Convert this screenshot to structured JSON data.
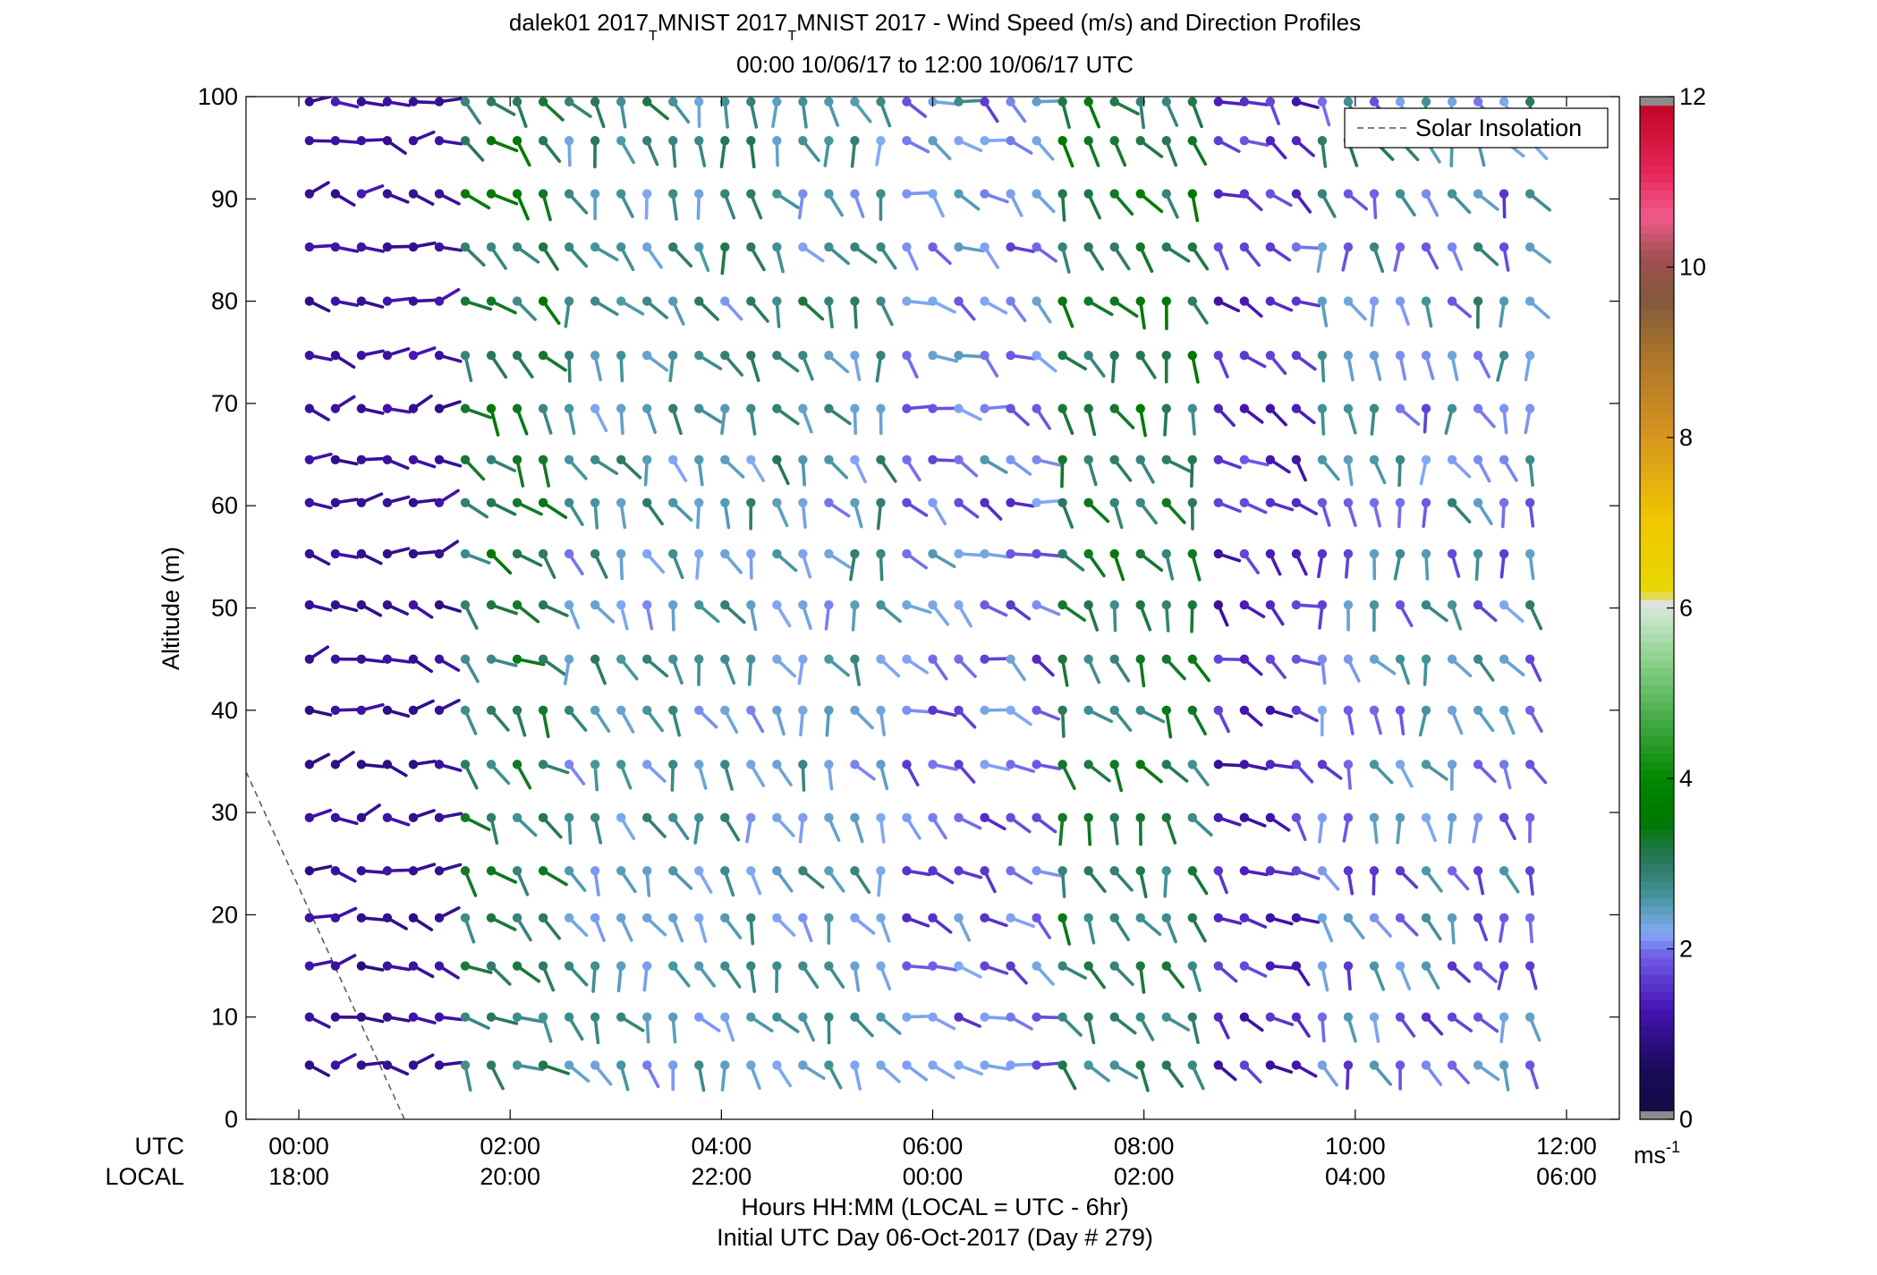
{
  "chart_data": {
    "type": "wind-barb-profile",
    "title_parts": [
      "dalek01 2017",
      "T",
      "MNIST 2017",
      "T",
      "MNIST 2017 - Wind Speed (m/s) and Direction Profiles"
    ],
    "subtitle": "00:00 10/06/17 to 12:00 10/06/17  UTC",
    "ylabel": "Altitude (m)",
    "ylim": [
      0,
      100
    ],
    "yticks": [
      "0",
      "10",
      "20",
      "30",
      "40",
      "50",
      "60",
      "70",
      "80",
      "90",
      "100"
    ],
    "xlim_hours": [
      -0.5,
      12.5
    ],
    "xticks_utc": [
      "00:00",
      "02:00",
      "04:00",
      "06:00",
      "08:00",
      "10:00",
      "12:00"
    ],
    "xticks_local": [
      "18:00",
      "20:00",
      "22:00",
      "00:00",
      "02:00",
      "04:00",
      "06:00"
    ],
    "x_row_labels": [
      "UTC",
      "LOCAL"
    ],
    "xlabel_line1": "Hours HH:MM  (LOCAL = UTC - 6hr)",
    "xlabel_line2": "Initial UTC Day 06-Oct-2017 (Day # 279)",
    "legend": {
      "label": "Solar Insolation",
      "location": "top-right",
      "style": "dashed"
    },
    "colorbar": {
      "min": 0,
      "max": 12,
      "ticks": [
        "0",
        "2",
        "4",
        "6",
        "8",
        "10",
        "12"
      ],
      "unit_base": "ms",
      "unit_exp": "-1"
    },
    "altitudes_m": [
      5.3,
      10,
      15,
      19.7,
      24.3,
      29.5,
      34.7,
      40,
      45,
      50.3,
      55.3,
      60.3,
      64.5,
      69.5,
      74.7,
      80,
      85.3,
      90.5,
      95.7,
      99.5
    ],
    "time_range_utc_hours": [
      0.1,
      11.9
    ],
    "samples_per_row": 49,
    "solar_insolation_line": [
      [
        -0.5,
        34
      ],
      [
        1.0,
        0
      ]
    ],
    "segments": [
      {
        "start": 0.1,
        "end": 1.4,
        "spd_lo": 0.7,
        "spd_hi": 1.4,
        "dir": 270
      },
      {
        "start": 1.55,
        "end": 2.55,
        "spd_lo": 2.2,
        "spd_hi": 3.8,
        "dir": 225
      },
      {
        "start": 2.55,
        "end": 5.6,
        "spd_lo": 1.5,
        "spd_hi": 3.4,
        "dir": 205
      },
      {
        "start": 5.6,
        "end": 7.0,
        "spd_lo": 1.0,
        "spd_hi": 2.8,
        "dir": 240
      },
      {
        "start": 7.0,
        "end": 8.5,
        "spd_lo": 2.2,
        "spd_hi": 3.8,
        "dir": 210
      },
      {
        "start": 8.5,
        "end": 9.65,
        "spd_lo": 0.6,
        "spd_hi": 2.2,
        "dir": 235
      },
      {
        "start": 9.65,
        "end": 11.9,
        "spd_lo": 0.8,
        "spd_hi": 3.4,
        "dir": 200
      }
    ],
    "plot_area_color": "#ffffff"
  }
}
